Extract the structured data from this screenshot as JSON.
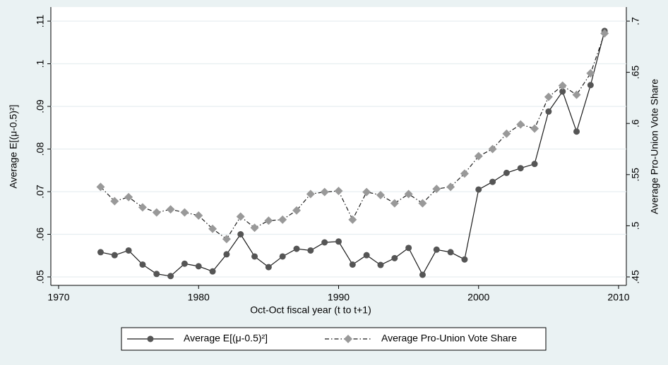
{
  "chart_data": {
    "type": "line",
    "x_label": "Oct-Oct fiscal year (t to t+1)",
    "y_label": "Average E[(μ-0.5)²]",
    "y2_label": "Average Pro-Union Vote Share",
    "x": [
      1973,
      1974,
      1975,
      1976,
      1977,
      1978,
      1979,
      1980,
      1981,
      1982,
      1983,
      1984,
      1985,
      1986,
      1987,
      1988,
      1989,
      1990,
      1991,
      1992,
      1993,
      1994,
      1995,
      1996,
      1997,
      1998,
      1999,
      2000,
      2001,
      2002,
      2003,
      2004,
      2005,
      2006,
      2007,
      2008,
      2009
    ],
    "series": [
      {
        "name": "Average E[(μ-0.5)²]",
        "color": "#555555",
        "marker": "circle",
        "values": [
          0.0558,
          0.0551,
          0.0562,
          0.0529,
          0.0507,
          0.0502,
          0.0531,
          0.0525,
          0.0513,
          0.0553,
          0.06,
          0.0548,
          0.0523,
          0.0548,
          0.0566,
          0.0562,
          0.0581,
          0.0583,
          0.0529,
          0.0551,
          0.0528,
          0.0544,
          0.0568,
          0.0505,
          0.0564,
          0.0558,
          0.0541,
          0.0705,
          0.0723,
          0.0744,
          0.0755,
          0.0765,
          0.0888,
          0.0935,
          0.0841,
          0.095,
          0.1077
        ]
      },
      {
        "name": "Average Pro-Union Vote Share",
        "color": "#999999",
        "marker": "diamond",
        "axis": "y2",
        "values": [
          0.538,
          0.524,
          0.528,
          0.518,
          0.513,
          0.516,
          0.513,
          0.51,
          0.497,
          0.487,
          0.509,
          0.498,
          0.505,
          0.506,
          0.515,
          0.531,
          0.533,
          0.534,
          0.506,
          0.533,
          0.53,
          0.522,
          0.531,
          0.522,
          0.536,
          0.538,
          0.551,
          0.568,
          0.575,
          0.59,
          0.599,
          0.595,
          0.626,
          0.637,
          0.628,
          0.649,
          0.688
        ]
      }
    ],
    "xlim": [
      1970,
      2010
    ],
    "xticks": [
      1970,
      1980,
      1990,
      2000,
      2010
    ],
    "ylim": [
      0.05,
      0.11
    ],
    "yticks": [
      {
        "value": 0.05,
        "label": ".05"
      },
      {
        "value": 0.06,
        "label": ".06"
      },
      {
        "value": 0.07,
        "label": ".07"
      },
      {
        "value": 0.08,
        "label": ".08"
      },
      {
        "value": 0.09,
        "label": ".09"
      },
      {
        "value": 0.1,
        "label": ".1"
      },
      {
        "value": 0.11,
        "label": ".11"
      }
    ],
    "y2lim": [
      0.45,
      0.7
    ],
    "y2ticks": [
      {
        "value": 0.45,
        "label": ".45"
      },
      {
        "value": 0.5,
        "label": ".5"
      },
      {
        "value": 0.55,
        "label": ".55"
      },
      {
        "value": 0.6,
        "label": ".6"
      },
      {
        "value": 0.65,
        "label": ".65"
      },
      {
        "value": 0.7,
        "label": ".7"
      }
    ],
    "grid": true
  }
}
